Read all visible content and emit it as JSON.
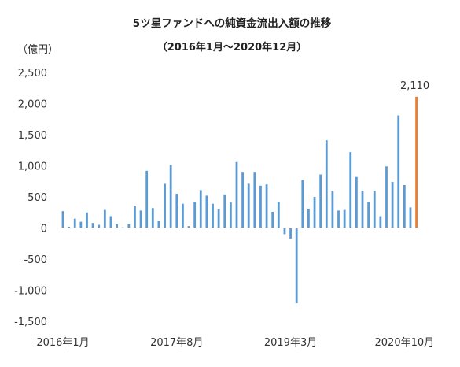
{
  "chart_data": {
    "type": "bar",
    "title": "5ツ星ファンドへの純資金流出入額の推移",
    "subtitle": "（2016年1月～2020年12月）",
    "ylabel": "（億円）",
    "ylim": [
      -1500,
      2500
    ],
    "yticks": [
      2500,
      2000,
      1500,
      1000,
      500,
      0,
      -500,
      -1000,
      -1500
    ],
    "ytick_labels": [
      "2,500",
      "2,000",
      "1,500",
      "1,000",
      "500",
      "0",
      "-500",
      "-1,000",
      "-1,500"
    ],
    "x_tick_labels": [
      {
        "index": 0,
        "label": "2016年1月"
      },
      {
        "index": 19,
        "label": "2017年8月"
      },
      {
        "index": 38,
        "label": "2019年3月"
      },
      {
        "index": 57,
        "label": "2020年10月"
      }
    ],
    "grid": false,
    "series_colors": {
      "default": "#5B9BD5",
      "highlight": "#ED7D31"
    },
    "highlight_index": 59,
    "highlight_label": "2,110",
    "values": [
      270,
      20,
      150,
      100,
      250,
      80,
      50,
      290,
      190,
      60,
      10,
      60,
      360,
      280,
      920,
      320,
      120,
      710,
      1010,
      550,
      390,
      30,
      420,
      610,
      520,
      390,
      300,
      540,
      410,
      1060,
      890,
      710,
      890,
      680,
      700,
      260,
      420,
      -100,
      -170,
      -1210,
      770,
      310,
      500,
      860,
      1410,
      590,
      280,
      290,
      1220,
      820,
      600,
      420,
      590,
      190,
      990,
      740,
      1810,
      690,
      330,
      2110
    ]
  }
}
